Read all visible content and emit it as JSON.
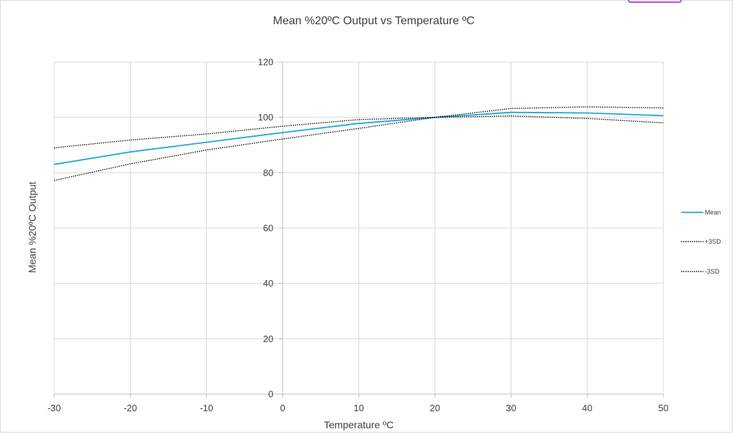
{
  "chart_data": {
    "type": "line",
    "title": "Mean %20ºC Output vs Temperature ºC",
    "xlabel": "Temperature ºC",
    "ylabel": "Mean %20ºC Output",
    "xlim": [
      -30,
      50
    ],
    "ylim": [
      0,
      120
    ],
    "x_ticks": [
      -30,
      -20,
      -10,
      0,
      10,
      20,
      30,
      40,
      50
    ],
    "y_ticks": [
      0,
      20,
      40,
      60,
      80,
      100,
      120
    ],
    "x": [
      -30,
      -20,
      -10,
      0,
      10,
      20,
      30,
      40,
      50
    ],
    "grid": true,
    "legend_position": "right",
    "series": [
      {
        "name": "Mean",
        "values": [
          83.0,
          87.5,
          91.0,
          94.5,
          97.8,
          100.0,
          101.8,
          101.6,
          100.6
        ],
        "color": "#1fa7e0",
        "style": "solid"
      },
      {
        "name": "+3SD",
        "values": [
          89.0,
          91.8,
          94.0,
          96.8,
          99.2,
          100.0,
          103.2,
          103.8,
          103.4
        ],
        "color": "#000000",
        "style": "dotted"
      },
      {
        "name": "-3SD",
        "values": [
          77.2,
          83.2,
          88.2,
          92.2,
          96.0,
          100.0,
          100.5,
          99.6,
          98.0
        ],
        "color": "#000000",
        "style": "dotted"
      }
    ]
  }
}
